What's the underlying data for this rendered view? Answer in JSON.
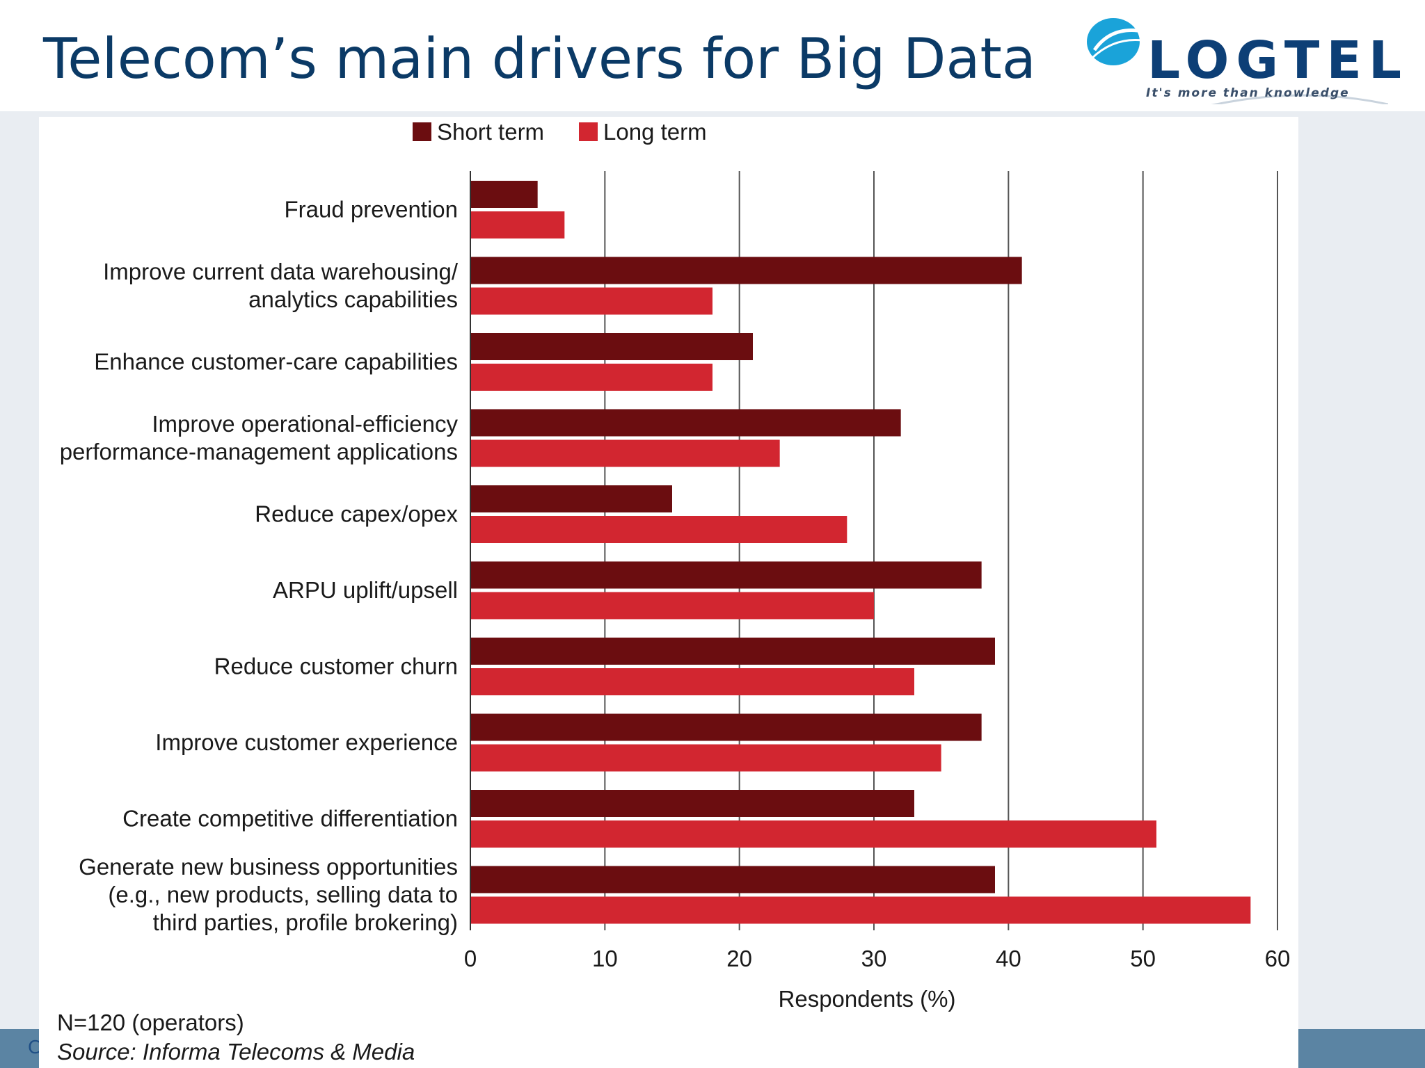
{
  "slide": {
    "title": "Telecom’s main drivers for Big Data",
    "footer_text": "C"
  },
  "logo": {
    "name": "LOGTEL",
    "tagline": "It's more than knowledge"
  },
  "notes": {
    "sample": "N=120 (operators)",
    "source": "Source: Informa Telecoms & Media"
  },
  "colors": {
    "short_term": "#6b0d10",
    "long_term": "#d22630",
    "title": "#0b3a66",
    "footer": "#5b84a3"
  },
  "chart_data": {
    "type": "bar",
    "orientation": "horizontal",
    "categories": [
      [
        "Fraud prevention"
      ],
      [
        "Improve current data warehousing/",
        "analytics capabilities"
      ],
      [
        "Enhance customer-care capabilities"
      ],
      [
        "Improve operational-efficiency",
        "performance-management applications"
      ],
      [
        "Reduce capex/opex"
      ],
      [
        "ARPU uplift/upsell"
      ],
      [
        "Reduce customer churn"
      ],
      [
        "Improve customer experience"
      ],
      [
        "Create competitive differentiation"
      ],
      [
        "Generate new business opportunities",
        "(e.g., new products, selling data to",
        "third parties, profile brokering)"
      ]
    ],
    "series": [
      {
        "name": "Short term",
        "color": "#6b0d10",
        "values": [
          5,
          41,
          21,
          32,
          15,
          38,
          39,
          38,
          33,
          39
        ]
      },
      {
        "name": "Long term",
        "color": "#d22630",
        "values": [
          7,
          18,
          18,
          23,
          28,
          30,
          33,
          35,
          51,
          58
        ]
      }
    ],
    "xlabel": "Respondents (%)",
    "ylabel": "",
    "xlim": [
      0,
      60
    ],
    "xticks": [
      0,
      10,
      20,
      30,
      40,
      50,
      60
    ],
    "grid": "vertical",
    "legend": "top-center"
  }
}
